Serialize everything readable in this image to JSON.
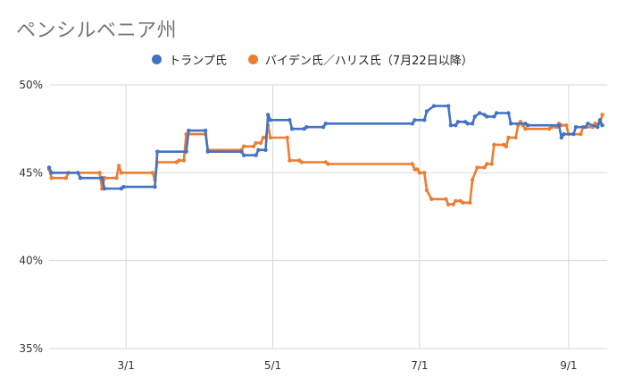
{
  "chart_data": {
    "type": "line",
    "title": "ペンシルベニア州",
    "xlabel": "",
    "ylabel": "",
    "x_range": [
      "2024-01-29",
      "2024-09-17"
    ],
    "ylim": [
      35,
      50
    ],
    "y_ticks": [
      35,
      40,
      45,
      50
    ],
    "y_tick_labels": [
      "35%",
      "40%",
      "45%",
      "50%"
    ],
    "x_ticks": [
      "2024-03-01",
      "2024-05-01",
      "2024-07-01",
      "2024-09-01"
    ],
    "x_tick_labels": [
      "3/1",
      "5/1",
      "7/1",
      "9/1"
    ],
    "grid": "vertical",
    "legend_position": "top",
    "series": [
      {
        "name": "トランプ氏",
        "color": "#4472C4",
        "points": [
          [
            "2024-01-29",
            45.3
          ],
          [
            "2024-01-30",
            45.0
          ],
          [
            "2024-02-10",
            45.0
          ],
          [
            "2024-02-11",
            44.7
          ],
          [
            "2024-02-20",
            44.7
          ],
          [
            "2024-02-21",
            44.1
          ],
          [
            "2024-02-28",
            44.1
          ],
          [
            "2024-02-29",
            44.2
          ],
          [
            "2024-03-13",
            44.2
          ],
          [
            "2024-03-14",
            46.2
          ],
          [
            "2024-03-26",
            46.2
          ],
          [
            "2024-03-27",
            47.4
          ],
          [
            "2024-04-03",
            47.4
          ],
          [
            "2024-04-04",
            46.2
          ],
          [
            "2024-04-18",
            46.2
          ],
          [
            "2024-04-19",
            46.0
          ],
          [
            "2024-04-24",
            46.0
          ],
          [
            "2024-04-25",
            46.3
          ],
          [
            "2024-04-28",
            46.3
          ],
          [
            "2024-04-29",
            48.3
          ],
          [
            "2024-04-30",
            48.0
          ],
          [
            "2024-05-08",
            48.0
          ],
          [
            "2024-05-09",
            47.5
          ],
          [
            "2024-05-14",
            47.5
          ],
          [
            "2024-05-15",
            47.6
          ],
          [
            "2024-05-22",
            47.6
          ],
          [
            "2024-05-23",
            47.8
          ],
          [
            "2024-06-28",
            47.8
          ],
          [
            "2024-06-29",
            48.0
          ],
          [
            "2024-07-03",
            48.0
          ],
          [
            "2024-07-04",
            48.5
          ],
          [
            "2024-07-07",
            48.8
          ],
          [
            "2024-07-13",
            48.8
          ],
          [
            "2024-07-14",
            47.7
          ],
          [
            "2024-07-16",
            47.7
          ],
          [
            "2024-07-17",
            47.9
          ],
          [
            "2024-07-20",
            47.9
          ],
          [
            "2024-07-21",
            47.8
          ],
          [
            "2024-07-23",
            47.8
          ],
          [
            "2024-07-24",
            48.2
          ],
          [
            "2024-07-26",
            48.4
          ],
          [
            "2024-07-28",
            48.3
          ],
          [
            "2024-07-29",
            48.2
          ],
          [
            "2024-08-01",
            48.2
          ],
          [
            "2024-08-02",
            48.4
          ],
          [
            "2024-08-07",
            48.4
          ],
          [
            "2024-08-08",
            47.8
          ],
          [
            "2024-08-14",
            47.8
          ],
          [
            "2024-08-15",
            47.7
          ],
          [
            "2024-08-28",
            47.7
          ],
          [
            "2024-08-29",
            47.0
          ],
          [
            "2024-08-30",
            47.2
          ],
          [
            "2024-09-03",
            47.2
          ],
          [
            "2024-09-04",
            47.6
          ],
          [
            "2024-09-08",
            47.6
          ],
          [
            "2024-09-09",
            47.8
          ],
          [
            "2024-09-13",
            47.6
          ],
          [
            "2024-09-14",
            48.0
          ],
          [
            "2024-09-15",
            47.7
          ]
        ]
      },
      {
        "name": "バイデン氏／ハリス氏（7月22日以降）",
        "color": "#ED7D31",
        "points": [
          [
            "2024-01-29",
            45.2
          ],
          [
            "2024-01-30",
            44.7
          ],
          [
            "2024-02-05",
            44.7
          ],
          [
            "2024-02-06",
            45.0
          ],
          [
            "2024-02-19",
            45.0
          ],
          [
            "2024-02-20",
            44.1
          ],
          [
            "2024-02-21",
            44.7
          ],
          [
            "2024-02-26",
            44.7
          ],
          [
            "2024-02-27",
            45.4
          ],
          [
            "2024-02-28",
            45.0
          ],
          [
            "2024-03-12",
            45.0
          ],
          [
            "2024-03-13",
            44.6
          ],
          [
            "2024-03-14",
            45.6
          ],
          [
            "2024-03-22",
            45.6
          ],
          [
            "2024-03-23",
            45.7
          ],
          [
            "2024-03-25",
            45.7
          ],
          [
            "2024-03-26",
            47.2
          ],
          [
            "2024-04-03",
            47.2
          ],
          [
            "2024-04-04",
            46.3
          ],
          [
            "2024-04-18",
            46.3
          ],
          [
            "2024-04-19",
            46.5
          ],
          [
            "2024-04-23",
            46.5
          ],
          [
            "2024-04-24",
            46.7
          ],
          [
            "2024-04-26",
            46.7
          ],
          [
            "2024-04-27",
            47.0
          ],
          [
            "2024-04-28",
            47.0
          ],
          [
            "2024-04-29",
            47.7
          ],
          [
            "2024-04-30",
            47.0
          ],
          [
            "2024-05-07",
            47.0
          ],
          [
            "2024-05-08",
            45.7
          ],
          [
            "2024-05-12",
            45.7
          ],
          [
            "2024-05-13",
            45.6
          ],
          [
            "2024-05-23",
            45.6
          ],
          [
            "2024-05-24",
            45.5
          ],
          [
            "2024-06-28",
            45.5
          ],
          [
            "2024-06-29",
            45.2
          ],
          [
            "2024-06-30",
            45.2
          ],
          [
            "2024-07-01",
            45.0
          ],
          [
            "2024-07-03",
            45.0
          ],
          [
            "2024-07-04",
            44.0
          ],
          [
            "2024-07-06",
            43.5
          ],
          [
            "2024-07-12",
            43.5
          ],
          [
            "2024-07-13",
            43.2
          ],
          [
            "2024-07-15",
            43.2
          ],
          [
            "2024-07-16",
            43.4
          ],
          [
            "2024-07-18",
            43.4
          ],
          [
            "2024-07-19",
            43.3
          ],
          [
            "2024-07-22",
            43.3
          ],
          [
            "2024-07-23",
            44.6
          ],
          [
            "2024-07-25",
            45.3
          ],
          [
            "2024-07-28",
            45.3
          ],
          [
            "2024-07-29",
            45.5
          ],
          [
            "2024-07-31",
            45.5
          ],
          [
            "2024-08-01",
            46.6
          ],
          [
            "2024-08-05",
            46.6
          ],
          [
            "2024-08-06",
            46.5
          ],
          [
            "2024-08-07",
            47.0
          ],
          [
            "2024-08-10",
            47.0
          ],
          [
            "2024-08-11",
            47.7
          ],
          [
            "2024-08-12",
            47.9
          ],
          [
            "2024-08-13",
            47.7
          ],
          [
            "2024-08-14",
            47.5
          ],
          [
            "2024-08-24",
            47.5
          ],
          [
            "2024-08-25",
            47.6
          ],
          [
            "2024-08-27",
            47.6
          ],
          [
            "2024-08-28",
            47.8
          ],
          [
            "2024-08-29",
            47.7
          ],
          [
            "2024-08-31",
            47.7
          ],
          [
            "2024-09-01",
            47.2
          ],
          [
            "2024-09-06",
            47.2
          ],
          [
            "2024-09-07",
            47.6
          ],
          [
            "2024-09-11",
            47.6
          ],
          [
            "2024-09-12",
            47.8
          ],
          [
            "2024-09-14",
            47.8
          ],
          [
            "2024-09-15",
            48.3
          ]
        ]
      }
    ]
  }
}
